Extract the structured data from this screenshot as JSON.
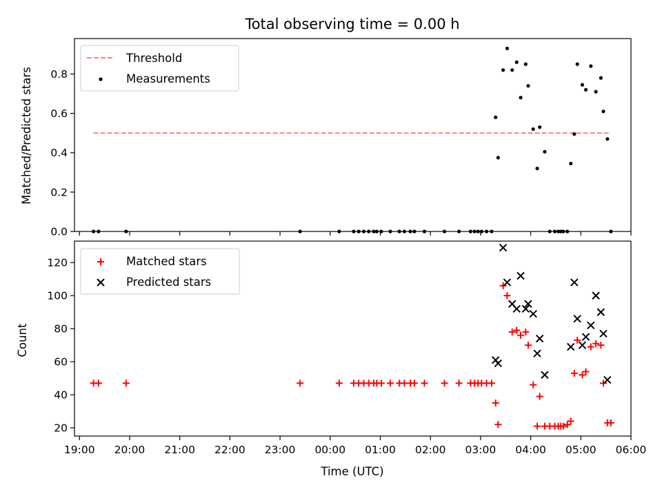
{
  "chart_data": [
    {
      "type": "scatter",
      "title": "Total observing time = 0.00 h",
      "xlabel": "",
      "ylabel": "Matched/Predicted stars",
      "xlim": [
        -0.1,
        11.0
      ],
      "ylim": [
        0,
        0.98
      ],
      "yticks": [
        0.0,
        0.2,
        0.4,
        0.6,
        0.8
      ],
      "ytick_labels": [
        "0.0",
        "0.2",
        "0.4",
        "0.6",
        "0.8"
      ],
      "legend": {
        "position": "upper-left",
        "entries": [
          {
            "label": "Threshold",
            "marker": "dashed-line",
            "color": "#ff7f7f"
          },
          {
            "label": "Measurements",
            "marker": "dot",
            "color": "#000000"
          }
        ]
      },
      "threshold": {
        "name": "Threshold",
        "value": 0.5,
        "x_range": [
          0.28,
          10.6
        ],
        "color": "#ff7f7f"
      },
      "series": [
        {
          "name": "Measurements",
          "color": "#000000",
          "x": [
            0.28,
            0.38,
            0.93,
            4.4,
            5.18,
            5.47,
            5.57,
            5.67,
            5.77,
            5.87,
            5.93,
            6.02,
            6.2,
            6.38,
            6.48,
            6.6,
            6.68,
            6.88,
            7.28,
            7.57,
            7.8,
            7.88,
            7.95,
            8.02,
            8.12,
            8.22,
            8.3,
            8.35,
            8.45,
            8.53,
            8.63,
            8.72,
            8.8,
            8.9,
            8.95,
            9.05,
            9.13,
            9.18,
            9.28,
            9.38,
            9.48,
            9.55,
            9.6,
            9.65,
            9.73,
            9.8,
            9.87,
            9.93,
            10.03,
            10.1,
            10.2,
            10.3,
            10.4,
            10.45,
            10.53,
            10.6
          ],
          "y": [
            0.0,
            0.0,
            0.0,
            0.0,
            0.0,
            0.0,
            0.0,
            0.0,
            0.0,
            0.0,
            0.0,
            0.0,
            0.0,
            0.0,
            0.0,
            0.0,
            0.0,
            0.0,
            0.0,
            0.0,
            0.0,
            0.0,
            0.0,
            0.0,
            0.0,
            0.0,
            0.58,
            0.375,
            0.82,
            0.93,
            0.82,
            0.86,
            0.68,
            0.85,
            0.74,
            0.52,
            0.32,
            0.53,
            0.405,
            0.0,
            0.0,
            0.0,
            0.0,
            0.0,
            0.0,
            0.345,
            0.495,
            0.85,
            0.745,
            0.72,
            0.84,
            0.71,
            0.78,
            0.61,
            0.47,
            0.0
          ]
        }
      ]
    },
    {
      "type": "scatter",
      "title": "",
      "xlabel": "Time (UTC)",
      "ylabel": "Count",
      "xlim": [
        -0.1,
        11.0
      ],
      "ylim": [
        15,
        133
      ],
      "xticks": [
        0,
        1,
        2,
        3,
        4,
        5,
        6,
        7,
        8,
        9,
        10,
        11
      ],
      "xtick_labels": [
        "19:00",
        "20:00",
        "21:00",
        "22:00",
        "23:00",
        "00:00",
        "01:00",
        "02:00",
        "03:00",
        "04:00",
        "05:00",
        "06:00"
      ],
      "yticks": [
        20,
        40,
        60,
        80,
        100,
        120
      ],
      "ytick_labels": [
        "20",
        "40",
        "60",
        "80",
        "100",
        "120"
      ],
      "legend": {
        "position": "upper-left",
        "entries": [
          {
            "label": "Matched stars",
            "marker": "plus",
            "color": "#ff0000"
          },
          {
            "label": "Predicted stars",
            "marker": "x",
            "color": "#000000"
          }
        ]
      },
      "series": [
        {
          "name": "Matched stars",
          "marker": "plus",
          "color": "#ff0000",
          "x": [
            0.28,
            0.38,
            0.93,
            4.4,
            5.18,
            5.47,
            5.57,
            5.67,
            5.77,
            5.87,
            5.93,
            6.02,
            6.2,
            6.38,
            6.48,
            6.6,
            6.68,
            6.88,
            7.28,
            7.57,
            7.8,
            7.88,
            7.95,
            8.02,
            8.12,
            8.22,
            8.3,
            8.35,
            8.45,
            8.53,
            8.63,
            8.72,
            8.8,
            8.9,
            8.95,
            9.05,
            9.13,
            9.18,
            9.28,
            9.38,
            9.48,
            9.55,
            9.6,
            9.65,
            9.73,
            9.8,
            9.87,
            9.93,
            10.03,
            10.1,
            10.2,
            10.3,
            10.4,
            10.45,
            10.53,
            10.6
          ],
          "y": [
            47,
            47,
            47,
            47,
            47,
            47,
            47,
            47,
            47,
            47,
            47,
            47,
            47,
            47,
            47,
            47,
            47,
            47,
            47,
            47,
            47,
            47,
            47,
            47,
            47,
            47,
            35,
            22,
            106,
            100,
            78,
            79,
            76,
            78,
            70,
            46,
            21,
            39,
            21,
            21,
            21,
            21,
            21,
            21,
            22,
            24,
            53,
            73,
            52,
            54,
            69,
            71,
            70,
            47,
            23,
            23
          ]
        },
        {
          "name": "Predicted stars",
          "marker": "x",
          "color": "#000000",
          "x": [
            8.3,
            8.35,
            8.45,
            8.53,
            8.63,
            8.72,
            8.8,
            8.9,
            8.95,
            9.05,
            9.13,
            9.18,
            9.28,
            9.8,
            9.87,
            9.93,
            10.03,
            10.1,
            10.2,
            10.3,
            10.4,
            10.45,
            10.53
          ],
          "y": [
            61,
            59,
            129,
            108,
            95,
            92,
            112,
            92,
            95,
            89,
            65,
            74,
            52,
            69,
            108,
            86,
            70,
            75,
            82,
            100,
            90,
            77,
            49
          ]
        }
      ]
    }
  ]
}
